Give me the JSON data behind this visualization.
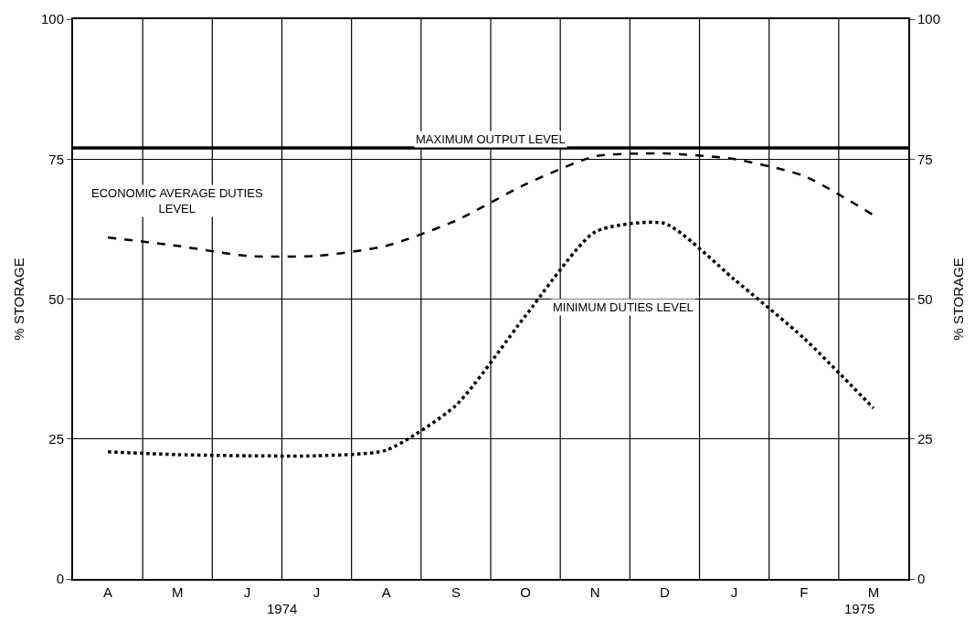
{
  "chart_data": {
    "type": "line",
    "ylabel": "% STORAGE",
    "y2label": "% STORAGE",
    "categories": [
      "A",
      "M",
      "J",
      "J",
      "A",
      "S",
      "O",
      "N",
      "D",
      "J",
      "F",
      "M"
    ],
    "series": [
      {
        "name": "ECONOMIC AVERAGE DUTIES LEVEL",
        "color": "#000000",
        "line_style": "dashed",
        "values": [
          61,
          59.5,
          57.7,
          57.7,
          59.5,
          64,
          70.5,
          75.5,
          76,
          75,
          72,
          65
        ]
      },
      {
        "name": "MINIMUM DUTIES LEVEL",
        "color": "#000000",
        "line_style": "dotted",
        "values": [
          22.7,
          22.2,
          22,
          22,
          23,
          31,
          47,
          62,
          63.5,
          53.5,
          43,
          30.5
        ]
      }
    ],
    "ref_lines": [
      {
        "axis": "y",
        "value": 77,
        "label": "MAXIMUM OUTPUT LEVEL",
        "color": "#000000"
      }
    ],
    "ylim": [
      0,
      100
    ],
    "yticks": [
      0,
      25,
      50,
      75,
      100
    ],
    "y2lim": [
      0,
      100
    ],
    "y2ticks": [
      0,
      25,
      50,
      75,
      100
    ],
    "annotations": [
      "1974",
      "1975"
    ],
    "grid": true,
    "legend": false,
    "marker": "none"
  }
}
